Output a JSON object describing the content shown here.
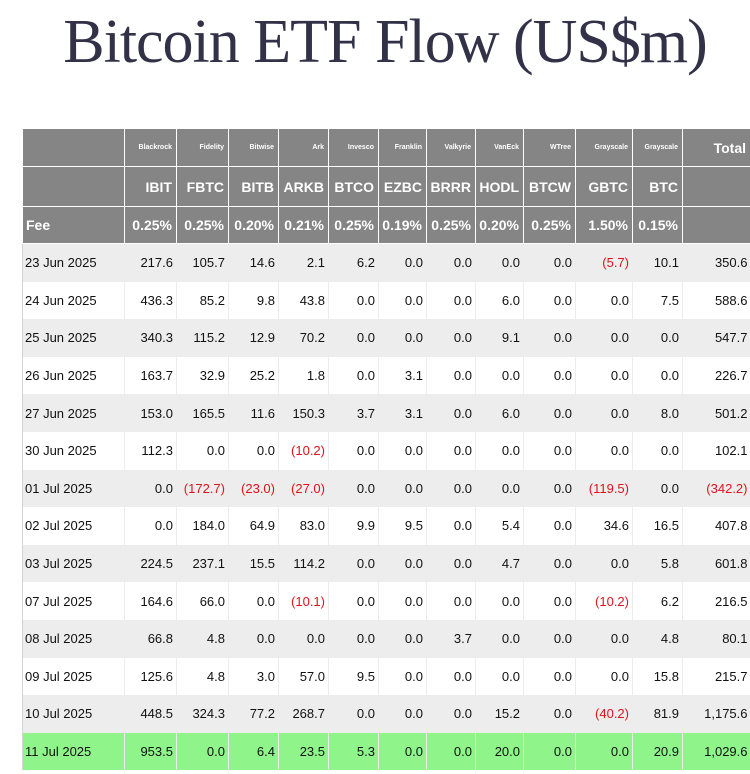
{
  "title": "Bitcoin ETF Flow (US$m)",
  "colors": {
    "title": "#323148",
    "header_bg": "#858585",
    "row_alt": "#ededed",
    "highlight_row": "#8ff58b",
    "negative": "#e0131a"
  },
  "table": {
    "issuers": [
      "Blackrock",
      "Fidelity",
      "Bitwise",
      "Ark",
      "Invesco",
      "Franklin",
      "Valkyrie",
      "VanEck",
      "WTree",
      "Grayscale",
      "Grayscale"
    ],
    "total_label": "Total",
    "tickers": [
      "IBIT",
      "FBTC",
      "BITB",
      "ARKB",
      "BTCO",
      "EZBC",
      "BRRR",
      "HODL",
      "BTCW",
      "GBTC",
      "BTC"
    ],
    "fee_label": "Fee",
    "fees": [
      "0.25%",
      "0.25%",
      "0.20%",
      "0.21%",
      "0.25%",
      "0.19%",
      "0.25%",
      "0.20%",
      "0.25%",
      "1.50%",
      "0.15%"
    ],
    "rows": [
      {
        "date": "23 Jun 2025",
        "values": [
          "217.6",
          "105.7",
          "14.6",
          "2.1",
          "6.2",
          "0.0",
          "0.0",
          "0.0",
          "0.0",
          "(5.7)",
          "10.1"
        ],
        "total": "350.6"
      },
      {
        "date": "24 Jun 2025",
        "values": [
          "436.3",
          "85.2",
          "9.8",
          "43.8",
          "0.0",
          "0.0",
          "0.0",
          "6.0",
          "0.0",
          "0.0",
          "7.5"
        ],
        "total": "588.6"
      },
      {
        "date": "25 Jun 2025",
        "values": [
          "340.3",
          "115.2",
          "12.9",
          "70.2",
          "0.0",
          "0.0",
          "0.0",
          "9.1",
          "0.0",
          "0.0",
          "0.0"
        ],
        "total": "547.7"
      },
      {
        "date": "26 Jun 2025",
        "values": [
          "163.7",
          "32.9",
          "25.2",
          "1.8",
          "0.0",
          "3.1",
          "0.0",
          "0.0",
          "0.0",
          "0.0",
          "0.0"
        ],
        "total": "226.7"
      },
      {
        "date": "27 Jun 2025",
        "values": [
          "153.0",
          "165.5",
          "11.6",
          "150.3",
          "3.7",
          "3.1",
          "0.0",
          "6.0",
          "0.0",
          "0.0",
          "8.0"
        ],
        "total": "501.2"
      },
      {
        "date": "30 Jun 2025",
        "values": [
          "112.3",
          "0.0",
          "0.0",
          "(10.2)",
          "0.0",
          "0.0",
          "0.0",
          "0.0",
          "0.0",
          "0.0",
          "0.0"
        ],
        "total": "102.1"
      },
      {
        "date": "01 Jul 2025",
        "values": [
          "0.0",
          "(172.7)",
          "(23.0)",
          "(27.0)",
          "0.0",
          "0.0",
          "0.0",
          "0.0",
          "0.0",
          "(119.5)",
          "0.0"
        ],
        "total": "(342.2)"
      },
      {
        "date": "02 Jul 2025",
        "values": [
          "0.0",
          "184.0",
          "64.9",
          "83.0",
          "9.9",
          "9.5",
          "0.0",
          "5.4",
          "0.0",
          "34.6",
          "16.5"
        ],
        "total": "407.8"
      },
      {
        "date": "03 Jul 2025",
        "values": [
          "224.5",
          "237.1",
          "15.5",
          "114.2",
          "0.0",
          "0.0",
          "0.0",
          "4.7",
          "0.0",
          "0.0",
          "5.8"
        ],
        "total": "601.8"
      },
      {
        "date": "07 Jul 2025",
        "values": [
          "164.6",
          "66.0",
          "0.0",
          "(10.1)",
          "0.0",
          "0.0",
          "0.0",
          "0.0",
          "0.0",
          "(10.2)",
          "6.2"
        ],
        "total": "216.5"
      },
      {
        "date": "08 Jul 2025",
        "values": [
          "66.8",
          "4.8",
          "0.0",
          "0.0",
          "0.0",
          "0.0",
          "3.7",
          "0.0",
          "0.0",
          "0.0",
          "4.8"
        ],
        "total": "80.1"
      },
      {
        "date": "09 Jul 2025",
        "values": [
          "125.6",
          "4.8",
          "3.0",
          "57.0",
          "9.5",
          "0.0",
          "0.0",
          "0.0",
          "0.0",
          "0.0",
          "15.8"
        ],
        "total": "215.7"
      },
      {
        "date": "10 Jul 2025",
        "values": [
          "448.5",
          "324.3",
          "77.2",
          "268.7",
          "0.0",
          "0.0",
          "0.0",
          "15.2",
          "0.0",
          "(40.2)",
          "81.9"
        ],
        "total": "1,175.6"
      },
      {
        "date": "11 Jul 2025",
        "values": [
          "953.5",
          "0.0",
          "6.4",
          "23.5",
          "5.3",
          "0.0",
          "0.0",
          "20.0",
          "0.0",
          "0.0",
          "20.9"
        ],
        "total": "1,029.6",
        "highlight": true
      }
    ]
  }
}
